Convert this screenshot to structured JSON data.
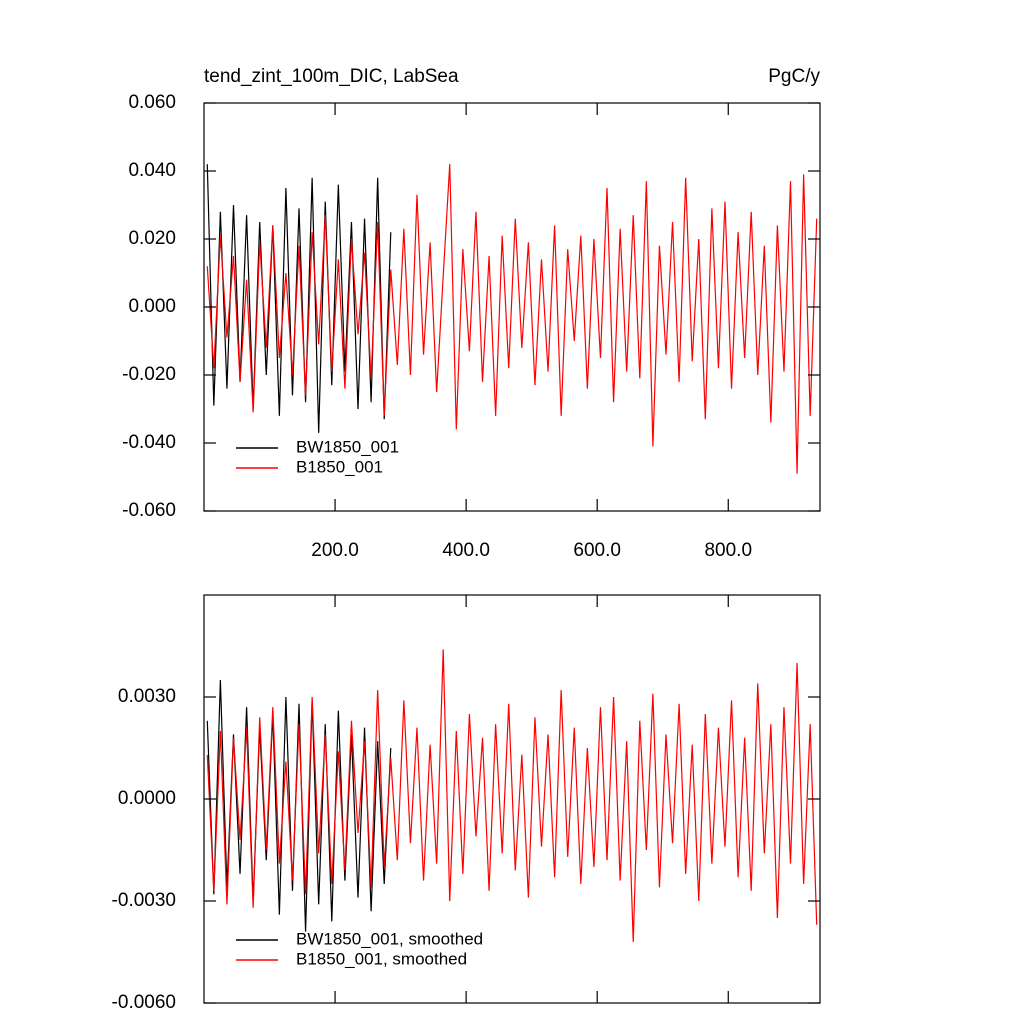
{
  "chart_data": [
    {
      "type": "line",
      "title": "tend_zint_100m_DIC, LabSea",
      "units": "PgC/y",
      "x": [
        5,
        15,
        25,
        35,
        45,
        55,
        65,
        75,
        85,
        95,
        105,
        115,
        125,
        135,
        145,
        155,
        165,
        175,
        185,
        195,
        205,
        215,
        225,
        235,
        245,
        255,
        265,
        275,
        285,
        295,
        305,
        315,
        325,
        335,
        345,
        355,
        365,
        375,
        385,
        395,
        405,
        415,
        425,
        435,
        445,
        455,
        465,
        475,
        485,
        495,
        505,
        515,
        525,
        535,
        545,
        555,
        565,
        575,
        585,
        595,
        605,
        615,
        625,
        635,
        645,
        655,
        665,
        675,
        685,
        695,
        705,
        715,
        725,
        735,
        745,
        755,
        765,
        775,
        785,
        795,
        805,
        815,
        825,
        835,
        845,
        855,
        865,
        875,
        885,
        895,
        905,
        915,
        925,
        935
      ],
      "xlim": [
        0,
        940
      ],
      "xticks": [
        {
          "value": 200,
          "label": "200.0"
        },
        {
          "value": 400,
          "label": "400.0"
        },
        {
          "value": 600,
          "label": "600.0"
        },
        {
          "value": 800,
          "label": "800.0"
        }
      ],
      "show_xtick_labels": true,
      "ylim": [
        -0.06,
        0.06
      ],
      "yticks": [
        {
          "value": -0.06,
          "label": "-0.060"
        },
        {
          "value": -0.04,
          "label": "-0.040"
        },
        {
          "value": -0.02,
          "label": "-0.020"
        },
        {
          "value": 0,
          "label": "0.000"
        },
        {
          "value": 0.02,
          "label": "0.020"
        },
        {
          "value": 0.04,
          "label": "0.040"
        },
        {
          "value": 0.06,
          "label": "0.060"
        }
      ],
      "legend": "lower-left",
      "series": [
        {
          "name": "BW1850_001",
          "color": "#000000",
          "values": [
            0.042,
            -0.029,
            0.028,
            -0.024,
            0.03,
            -0.022,
            0.027,
            -0.03,
            0.025,
            -0.02,
            0.024,
            -0.032,
            0.035,
            -0.026,
            0.029,
            -0.028,
            0.038,
            -0.037,
            0.031,
            -0.023,
            0.036,
            -0.019,
            0.025,
            -0.03,
            0.026,
            -0.028,
            0.038,
            -0.033,
            0.022,
            null,
            null,
            null,
            null,
            null,
            null,
            null,
            null,
            null,
            null,
            null,
            null,
            null,
            null,
            null,
            null,
            null,
            null,
            null,
            null,
            null,
            null,
            null,
            null,
            null,
            null,
            null,
            null,
            null,
            null,
            null,
            null,
            null,
            null,
            null,
            null,
            null,
            null,
            null,
            null,
            null,
            null,
            null,
            null,
            null,
            null,
            null,
            null,
            null,
            null,
            null,
            null,
            null,
            null,
            null,
            null,
            null,
            null,
            null,
            null,
            null,
            null,
            null,
            null,
            null
          ]
        },
        {
          "name": "B1850_001",
          "color": "#ff0000",
          "values": [
            0.012,
            -0.018,
            0.021,
            -0.009,
            0.015,
            -0.022,
            0.008,
            -0.031,
            0.019,
            -0.012,
            0.024,
            -0.015,
            0.01,
            -0.02,
            0.018,
            -0.026,
            0.022,
            -0.011,
            0.027,
            -0.019,
            0.014,
            -0.024,
            0.02,
            -0.008,
            0.016,
            -0.021,
            0.025,
            -0.032,
            0.011,
            -0.017,
            0.023,
            -0.02,
            0.033,
            -0.014,
            0.019,
            -0.025,
            0.009,
            0.042,
            -0.036,
            0.017,
            -0.013,
            0.028,
            -0.022,
            0.015,
            -0.032,
            0.021,
            -0.018,
            0.026,
            -0.012,
            0.019,
            -0.023,
            0.014,
            -0.019,
            0.024,
            -0.032,
            0.017,
            -0.01,
            0.021,
            -0.024,
            0.02,
            -0.015,
            0.035,
            -0.028,
            0.023,
            -0.019,
            0.027,
            -0.021,
            0.037,
            -0.041,
            0.018,
            -0.014,
            0.025,
            -0.022,
            0.038,
            -0.016,
            0.02,
            -0.033,
            0.029,
            -0.018,
            0.031,
            -0.024,
            0.022,
            -0.015,
            0.028,
            -0.02,
            0.018,
            -0.034,
            0.024,
            -0.019,
            0.037,
            -0.049,
            0.039,
            -0.032,
            0.026
          ]
        }
      ]
    },
    {
      "type": "line",
      "x": [
        5,
        15,
        25,
        35,
        45,
        55,
        65,
        75,
        85,
        95,
        105,
        115,
        125,
        135,
        145,
        155,
        165,
        175,
        185,
        195,
        205,
        215,
        225,
        235,
        245,
        255,
        265,
        275,
        285,
        295,
        305,
        315,
        325,
        335,
        345,
        355,
        365,
        375,
        385,
        395,
        405,
        415,
        425,
        435,
        445,
        455,
        465,
        475,
        485,
        495,
        505,
        515,
        525,
        535,
        545,
        555,
        565,
        575,
        585,
        595,
        605,
        615,
        625,
        635,
        645,
        655,
        665,
        675,
        685,
        695,
        705,
        715,
        725,
        735,
        745,
        755,
        765,
        775,
        785,
        795,
        805,
        815,
        825,
        835,
        845,
        855,
        865,
        875,
        885,
        895,
        905,
        915,
        925,
        935
      ],
      "xlim": [
        0,
        940
      ],
      "xticks": [
        200,
        400,
        600,
        800
      ],
      "show_xtick_labels": false,
      "ylim": [
        -0.006,
        0.006
      ],
      "yticks": [
        {
          "value": -0.006,
          "label": "-0.0060"
        },
        {
          "value": -0.003,
          "label": "-0.0030"
        },
        {
          "value": 0,
          "label": "0.0000"
        },
        {
          "value": 0.003,
          "label": "0.0030"
        }
      ],
      "legend": "lower-left",
      "series": [
        {
          "name": "BW1850_001, smoothed",
          "color": "#000000",
          "values": [
            0.0023,
            -0.0028,
            0.0035,
            -0.0026,
            0.0019,
            -0.0022,
            0.0027,
            -0.003,
            0.0021,
            -0.0018,
            0.0025,
            -0.0034,
            0.003,
            -0.0027,
            0.0028,
            -0.0039,
            0.0029,
            -0.0031,
            0.0022,
            -0.0036,
            0.0026,
            -0.0024,
            0.0019,
            -0.0029,
            0.0021,
            -0.0033,
            0.0017,
            -0.0025,
            0.0015,
            null,
            null,
            null,
            null,
            null,
            null,
            null,
            null,
            null,
            null,
            null,
            null,
            null,
            null,
            null,
            null,
            null,
            null,
            null,
            null,
            null,
            null,
            null,
            null,
            null,
            null,
            null,
            null,
            null,
            null,
            null,
            null,
            null,
            null,
            null,
            null,
            null,
            null,
            null,
            null,
            null,
            null,
            null,
            null,
            null,
            null,
            null,
            null,
            null,
            null,
            null,
            null,
            null,
            null,
            null,
            null,
            null,
            null,
            null,
            null,
            null,
            null,
            null,
            null,
            null
          ]
        },
        {
          "name": "B1850_001, smoothed",
          "color": "#ff0000",
          "values": [
            0.0013,
            -0.0027,
            0.002,
            -0.0031,
            0.0018,
            -0.0012,
            0.0021,
            -0.0032,
            0.0024,
            -0.0015,
            0.0027,
            -0.0019,
            0.0011,
            -0.0024,
            0.0022,
            -0.0028,
            0.003,
            -0.0016,
            0.0019,
            -0.0025,
            0.0014,
            -0.0021,
            0.0023,
            -0.001,
            0.0017,
            -0.0026,
            0.0032,
            -0.002,
            0.0012,
            -0.0018,
            0.0029,
            -0.0013,
            0.0021,
            -0.0024,
            0.0016,
            -0.0019,
            0.0044,
            -0.003,
            0.002,
            -0.0022,
            0.0025,
            -0.0011,
            0.0018,
            -0.0027,
            0.0022,
            -0.0016,
            0.0028,
            -0.0021,
            0.0013,
            -0.0029,
            0.0024,
            -0.0014,
            0.0019,
            -0.0023,
            0.0032,
            -0.0017,
            0.0021,
            -0.0025,
            0.0015,
            -0.002,
            0.0027,
            -0.0018,
            0.003,
            -0.0024,
            0.0017,
            -0.0042,
            0.0023,
            -0.0015,
            0.0031,
            -0.0026,
            0.0019,
            -0.0013,
            0.0028,
            -0.0022,
            0.0016,
            -0.003,
            0.0025,
            -0.0019,
            0.0021,
            -0.0014,
            0.0029,
            -0.0023,
            0.0018,
            -0.0027,
            0.0034,
            -0.0016,
            0.0022,
            -0.0035,
            0.0027,
            -0.0019,
            0.004,
            -0.0025,
            0.0022,
            -0.0037
          ]
        }
      ]
    }
  ]
}
